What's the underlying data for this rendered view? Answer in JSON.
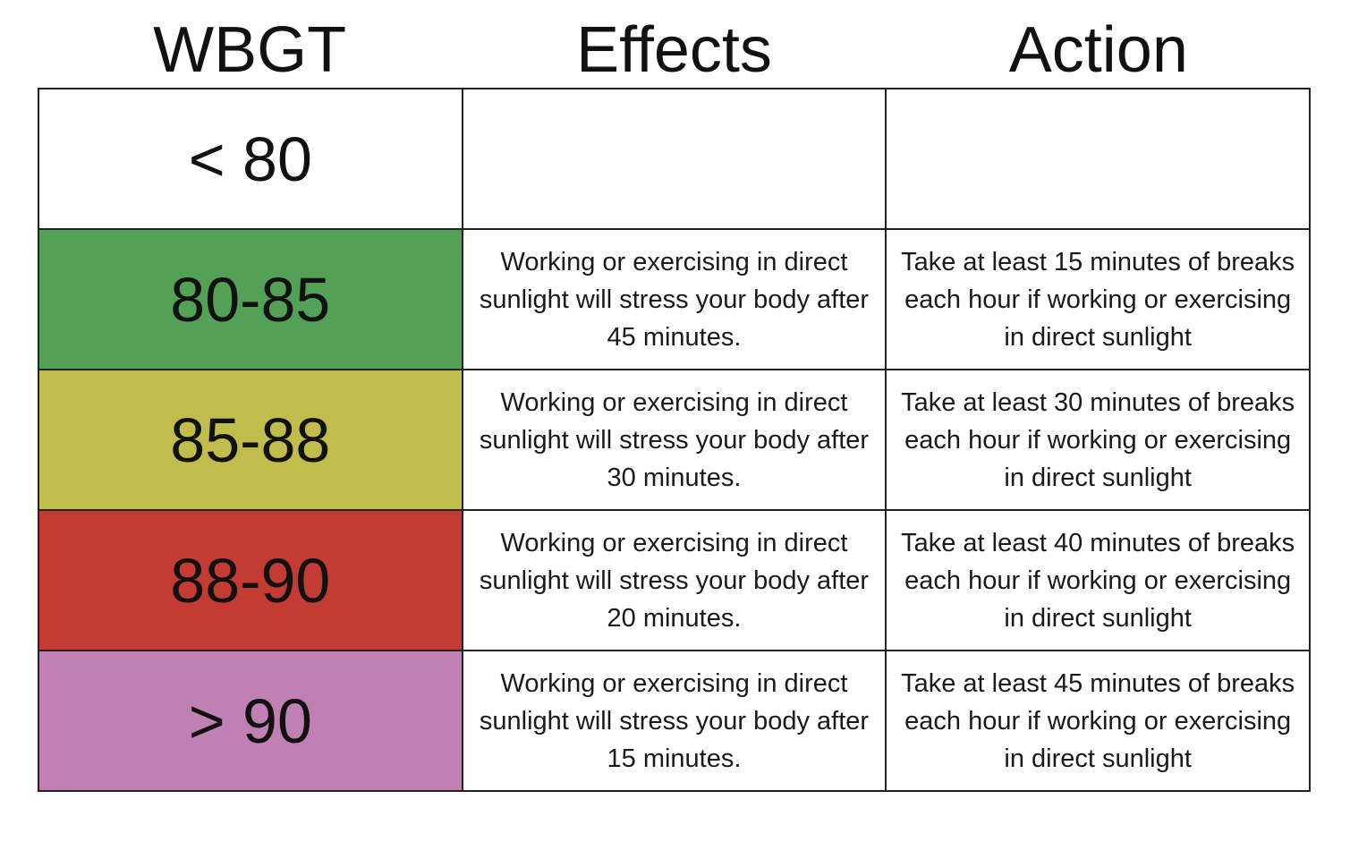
{
  "headers": {
    "wbgt": "WBGT",
    "effects": "Effects",
    "action": "Action"
  },
  "rows": [
    {
      "range": "< 80",
      "color": "#ffffff",
      "effects": "",
      "action": ""
    },
    {
      "range": "80-85",
      "color": "#53a157",
      "effects": "Working or exercising in direct sunlight will stress your body after 45 minutes.",
      "action": "Take at least 15 minutes of breaks each hour if working or exercising in direct sunlight"
    },
    {
      "range": "85-88",
      "color": "#c1bd4d",
      "effects": "Working or exercising in direct sunlight will stress your body after 30 minutes.",
      "action": "Take at least 30 minutes of breaks each hour if working or exercising in direct sunlight"
    },
    {
      "range": "88-90",
      "color": "#c33b32",
      "effects": "Working or exercising in direct sunlight will stress your body after 20 minutes.",
      "action": "Take at least 40 minutes of breaks each hour if working or exercising in direct sunlight"
    },
    {
      "range": "> 90",
      "color": "#c080b3",
      "effects": "Working or exercising in direct sunlight will stress your body after 15 minutes.",
      "action": "Take at least 45 minutes of breaks each hour if working or exercising in direct sunlight"
    }
  ]
}
